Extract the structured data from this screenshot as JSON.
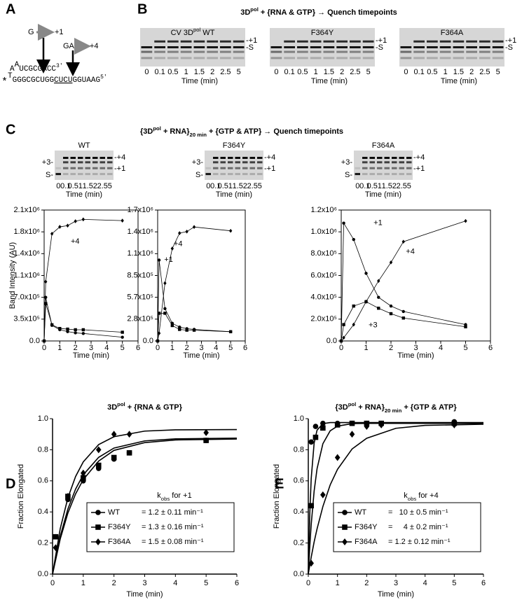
{
  "panel_labels": [
    "A",
    "B",
    "C",
    "D",
    "E"
  ],
  "panel_a": {
    "g": "G",
    "g_pos": "+1",
    "ga": "GA",
    "ga_pos": "+4",
    "top_strand": [
      "A",
      "A",
      "UCGCGACC",
      "3'"
    ],
    "bottom_strand": [
      "*",
      "T",
      "G",
      "GGCGCUGG",
      "CUCU",
      "GGUAAG",
      "5'"
    ]
  },
  "panel_b": {
    "title": [
      "3D",
      "pol",
      " + {RNA & GTP} → Quench timepoints"
    ],
    "gels": [
      [
        "CV 3D",
        "pol",
        " WT"
      ],
      [
        "F364Y"
      ],
      [
        "F364A"
      ]
    ],
    "lanes": [
      "0",
      "0.1",
      "0.5",
      "1",
      "1.5",
      "2",
      "2.5",
      "5"
    ],
    "xlabel": "Time (min)",
    "band_labels": [
      "-+1",
      "-S"
    ]
  },
  "panel_c": {
    "title": [
      "{3D",
      "pol",
      " + RNA}",
      "20 min",
      " + {GTP & ATP} → Quench timepoints"
    ],
    "gels": [
      "WT",
      "F364Y",
      "F364A"
    ],
    "lanes": [
      "0",
      "0.1",
      "0.5",
      "1",
      "1.5",
      "2",
      "2.5",
      "5"
    ],
    "xlabel": "Time (min)",
    "left_labels": [
      "+3-",
      "S-"
    ],
    "right_labels": [
      "-+4",
      "-+1"
    ]
  },
  "chart_data": [
    {
      "type": "line",
      "ylabel": "Band Intensity (AU)",
      "xlabel": "Time (min)",
      "x": [
        0,
        0.1,
        0.5,
        1,
        1.5,
        2,
        2.5,
        5
      ],
      "xlim": [
        0,
        6
      ],
      "xticks": [
        0,
        1,
        2,
        3,
        4,
        5,
        6
      ],
      "ylim": [
        0,
        2100000
      ],
      "yticks": [
        {
          "value": 0,
          "label": "0.0"
        },
        {
          "value": 350000,
          "label": "3.5x10⁵"
        },
        {
          "value": 700000,
          "label": "7.0x10⁵"
        },
        {
          "value": 1050000,
          "label": "1.1x10⁶"
        },
        {
          "value": 1400000,
          "label": "1.4x10⁶"
        },
        {
          "value": 1750000,
          "label": "1.8x10⁶"
        },
        {
          "value": 2100000,
          "label": "2.1x10⁶"
        }
      ],
      "series": [
        {
          "marker": "circle",
          "color": "#000000",
          "values": [
            0,
            700000,
            250000,
            180000,
            150000,
            130000,
            120000,
            60000
          ]
        },
        {
          "marker": "square",
          "color": "#000000",
          "values": [
            0,
            600000,
            260000,
            200000,
            190000,
            180000,
            180000,
            140000
          ]
        },
        {
          "marker": "diamond",
          "color": "#000000",
          "values": [
            0,
            950000,
            1720000,
            1830000,
            1850000,
            1920000,
            1950000,
            1930000
          ]
        }
      ],
      "annotations": [
        "+4"
      ]
    },
    {
      "type": "line",
      "xlabel": "Time (min)",
      "x": [
        0,
        0.1,
        0.5,
        1,
        1.5,
        2,
        2.5,
        5
      ],
      "xlim": [
        0,
        6
      ],
      "xticks": [
        0,
        1,
        2,
        3,
        4,
        5,
        6
      ],
      "ylim": [
        0,
        1700000
      ],
      "yticks": [
        {
          "value": 0,
          "label": "0.0"
        },
        {
          "value": 283333,
          "label": "2.8x10⁵"
        },
        {
          "value": 566667,
          "label": "5.7x10⁵"
        },
        {
          "value": 850000,
          "label": "8.5x10⁵"
        },
        {
          "value": 1133333,
          "label": "1.1x10⁶"
        },
        {
          "value": 1416667,
          "label": "1.4x10⁶"
        },
        {
          "value": 1700000,
          "label": "1.7x10⁶"
        }
      ],
      "series": [
        {
          "marker": "circle",
          "color": "#000000",
          "values": [
            0,
            1050000,
            420000,
            230000,
            180000,
            160000,
            150000,
            120000
          ]
        },
        {
          "marker": "square",
          "color": "#000000",
          "values": [
            0,
            360000,
            360000,
            200000,
            150000,
            140000,
            140000,
            120000
          ]
        },
        {
          "marker": "diamond",
          "color": "#000000",
          "values": [
            0,
            100000,
            750000,
            1200000,
            1400000,
            1420000,
            1480000,
            1430000
          ]
        }
      ],
      "annotations": [
        "+1",
        "+4"
      ]
    },
    {
      "type": "line",
      "xlabel": "Time (min)",
      "x": [
        0,
        0.1,
        0.5,
        1,
        1.5,
        2,
        2.5,
        5
      ],
      "xlim": [
        0,
        6
      ],
      "xticks": [
        0,
        1,
        2,
        3,
        4,
        5,
        6
      ],
      "ylim": [
        0,
        1200000
      ],
      "yticks": [
        {
          "value": 0,
          "label": "0.0"
        },
        {
          "value": 200000,
          "label": "2.0x10⁵"
        },
        {
          "value": 400000,
          "label": "4.0x10⁵"
        },
        {
          "value": 600000,
          "label": "6.0x10⁵"
        },
        {
          "value": 800000,
          "label": "8.0x10⁵"
        },
        {
          "value": 1000000,
          "label": "1.0x10⁶"
        },
        {
          "value": 1200000,
          "label": "1.2x10⁶"
        }
      ],
      "series": [
        {
          "marker": "circle",
          "color": "#000000",
          "values": [
            0,
            1080000,
            930000,
            620000,
            400000,
            320000,
            270000,
            150000
          ]
        },
        {
          "marker": "square",
          "color": "#000000",
          "values": [
            0,
            150000,
            320000,
            360000,
            300000,
            250000,
            210000,
            130000
          ]
        },
        {
          "marker": "diamond",
          "color": "#000000",
          "values": [
            0,
            30000,
            150000,
            360000,
            550000,
            720000,
            910000,
            1100000
          ]
        }
      ],
      "annotations": [
        "+1",
        "+4",
        "+3"
      ]
    },
    {
      "type": "scatter",
      "title": [
        "3D",
        "pol",
        " + {RNA & GTP}"
      ],
      "ylabel": "Fraction Elongated",
      "xlabel": "Time (min)",
      "xlim": [
        0,
        6
      ],
      "xticks": [
        0,
        1,
        2,
        3,
        4,
        5,
        6
      ],
      "ylim": [
        0,
        1
      ],
      "yticks": [
        {
          "value": 0,
          "label": "0.0"
        },
        {
          "value": 0.2,
          "label": "0.2"
        },
        {
          "value": 0.4,
          "label": "0.4"
        },
        {
          "value": 0.6,
          "label": "0.6"
        },
        {
          "value": 0.8,
          "label": "0.8"
        },
        {
          "value": 1,
          "label": "1.0"
        }
      ],
      "legend": "lower right",
      "legend_title": [
        "k",
        "obs",
        " for +1"
      ],
      "fit_x": [
        0,
        0.25,
        0.5,
        0.75,
        1,
        1.5,
        2,
        3,
        4,
        6
      ],
      "series": [
        {
          "name": "WT",
          "k_label": "= 1.2 ± 0.11 min⁻¹",
          "marker": "circle",
          "color": "#000000",
          "x": [
            0.1,
            0.5,
            1,
            1.5,
            2,
            2.5,
            5
          ],
          "values": [
            0.24,
            0.48,
            0.6,
            0.68,
            0.74,
            0.78,
            0.86
          ],
          "fit": [
            0,
            0.226,
            0.393,
            0.516,
            0.608,
            0.727,
            0.796,
            0.846,
            0.863,
            0.869
          ]
        },
        {
          "name": "F364Y",
          "k_label": "= 1.3 ± 0.16 min⁻¹",
          "marker": "square",
          "color": "#000000",
          "x": [
            0.1,
            0.5,
            1,
            1.5,
            2,
            2.5,
            5
          ],
          "values": [
            0.24,
            0.5,
            0.62,
            0.7,
            0.75,
            0.78,
            0.86
          ],
          "fit": [
            0,
            0.243,
            0.419,
            0.547,
            0.639,
            0.751,
            0.811,
            0.857,
            0.87,
            0.875
          ]
        },
        {
          "name": "F364A",
          "k_label": "= 1.5 ± 0.08 min⁻¹",
          "marker": "diamond",
          "color": "#000000",
          "x": [
            0.1,
            0.5,
            1,
            1.5,
            2,
            2.5,
            5
          ],
          "values": [
            0.17,
            0.5,
            0.65,
            0.8,
            0.9,
            0.9,
            0.91
          ],
          "fit": [
            0,
            0.292,
            0.491,
            0.628,
            0.722,
            0.833,
            0.884,
            0.92,
            0.928,
            0.93
          ]
        }
      ]
    },
    {
      "type": "scatter",
      "title": [
        "{3D",
        "pol",
        " + RNA}",
        "20 min",
        " + {GTP & ATP}"
      ],
      "ylabel": "Fraction Elongated",
      "xlabel": "Time (min)",
      "xlim": [
        0,
        6
      ],
      "xticks": [
        0,
        1,
        2,
        3,
        4,
        5,
        6
      ],
      "ylim": [
        0,
        1
      ],
      "yticks": [
        {
          "value": 0,
          "label": "0.0"
        },
        {
          "value": 0.2,
          "label": "0.2"
        },
        {
          "value": 0.4,
          "label": "0.4"
        },
        {
          "value": 0.6,
          "label": "0.6"
        },
        {
          "value": 0.8,
          "label": "0.8"
        },
        {
          "value": 1,
          "label": "1.0"
        }
      ],
      "legend": "lower right",
      "legend_title": [
        "k",
        "obs",
        " for +4"
      ],
      "fit_x": [
        0,
        0.05,
        0.1,
        0.2,
        0.3,
        0.5,
        0.75,
        1,
        1.5,
        2,
        3,
        4,
        6
      ],
      "series": [
        {
          "name": "WT",
          "k_label": "=   10 ± 0.5 min⁻¹",
          "marker": "circle",
          "color": "#000000",
          "x": [
            0.1,
            0.25,
            0.5,
            1,
            1.5,
            2,
            2.5,
            5
          ],
          "values": [
            0.85,
            0.95,
            0.97,
            0.97,
            0.97,
            0.97,
            0.97,
            0.98
          ],
          "fit": [
            0,
            0.383,
            0.616,
            0.843,
            0.926,
            0.968,
            0.975,
            0.975,
            0.975,
            0.975,
            0.975,
            0.975,
            0.975
          ]
        },
        {
          "name": "F364Y",
          "k_label": "=     4 ± 0.2 min⁻¹",
          "marker": "square",
          "color": "#000000",
          "x": [
            0.1,
            0.25,
            0.5,
            1,
            1.5,
            2,
            2.5,
            5
          ],
          "values": [
            0.44,
            0.88,
            0.94,
            0.96,
            0.97,
            0.97,
            0.97,
            0.97
          ],
          "fit": [
            0,
            0.176,
            0.32,
            0.534,
            0.678,
            0.839,
            0.922,
            0.952,
            0.968,
            0.97,
            0.97,
            0.97,
            0.97
          ]
        },
        {
          "name": "F364A",
          "k_label": "= 1.2 ± 0.12 min⁻¹",
          "marker": "diamond",
          "color": "#000000",
          "x": [
            0.1,
            0.5,
            1,
            1.5,
            2,
            2.5,
            5
          ],
          "values": [
            0.07,
            0.51,
            0.75,
            0.9,
            0.95,
            0.96,
            0.96
          ],
          "fit": [
            0,
            0.057,
            0.109,
            0.207,
            0.291,
            0.435,
            0.574,
            0.674,
            0.805,
            0.874,
            0.938,
            0.957,
            0.964
          ]
        }
      ]
    }
  ]
}
